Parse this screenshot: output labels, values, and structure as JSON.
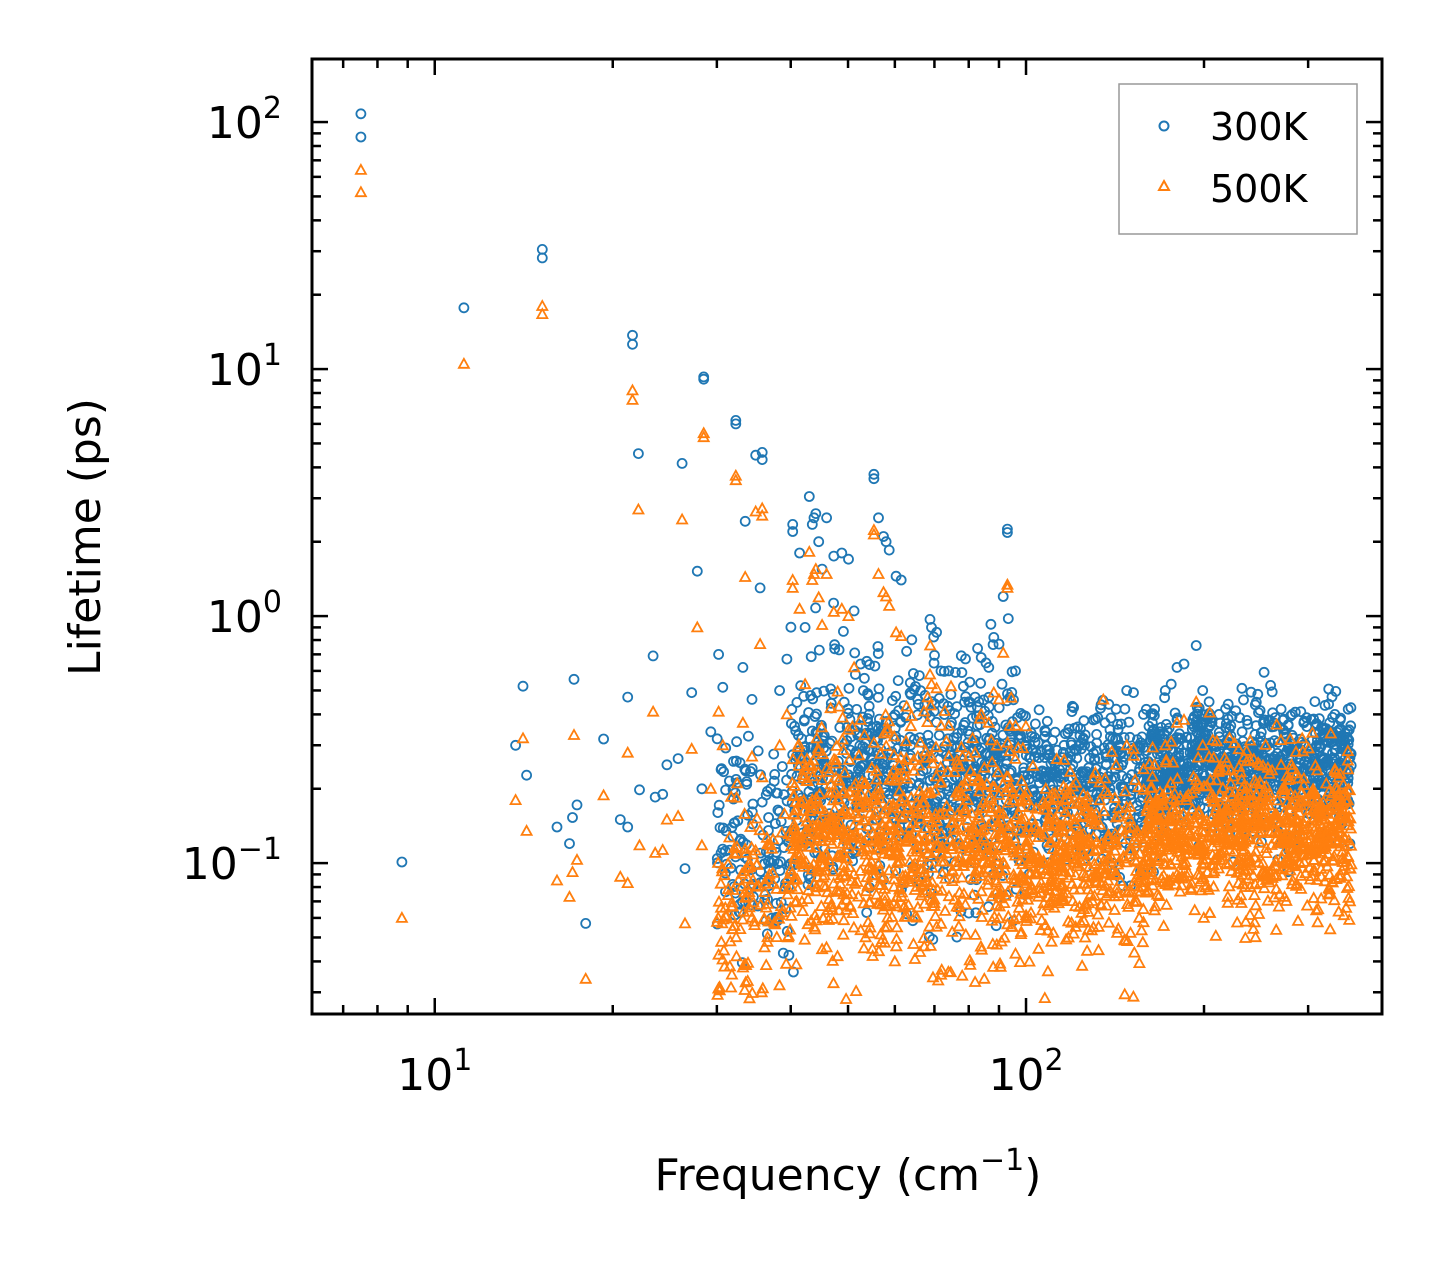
{
  "chart_data": {
    "type": "scatter",
    "title": "",
    "xlabel": "Frequency (cm",
    "xlabel_superscript": "−1",
    "xlabel_suffix": ")",
    "ylabel": "Lifetime (ps)",
    "xscale": "log",
    "yscale": "log",
    "xlim": [
      6.2,
      400
    ],
    "ylim": [
      0.0245,
      180
    ],
    "grid": false,
    "legend_location": "top-right",
    "x_ticks": [
      {
        "value": 10,
        "base": "10",
        "exponent": "1"
      },
      {
        "value": 100,
        "base": "10",
        "exponent": "2"
      }
    ],
    "y_ticks": [
      {
        "value": 0.1,
        "base": "10",
        "exponent": "−1"
      },
      {
        "value": 1,
        "base": "10",
        "exponent": "0"
      },
      {
        "value": 10,
        "base": "10",
        "exponent": "1"
      },
      {
        "value": 100,
        "base": "10",
        "exponent": "2"
      }
    ],
    "series": [
      {
        "name": "300K",
        "marker": "circle",
        "color": "#1f77b4",
        "points": [
          [
            7.5,
            108
          ],
          [
            7.5,
            87
          ],
          [
            8.8,
            0.101
          ],
          [
            11.2,
            17.7
          ],
          [
            13.7,
            0.3
          ],
          [
            14.1,
            0.52
          ],
          [
            14.3,
            0.227
          ],
          [
            15.2,
            30.5
          ],
          [
            15.2,
            28.2
          ],
          [
            16.1,
            0.14
          ],
          [
            16.9,
            0.12
          ],
          [
            17.1,
            0.153
          ],
          [
            17.2,
            0.555
          ],
          [
            17.4,
            0.172
          ],
          [
            18.0,
            0.057
          ],
          [
            19.3,
            0.318
          ],
          [
            20.6,
            0.15
          ],
          [
            21.2,
            0.47
          ],
          [
            21.6,
            13.7
          ],
          [
            21.6,
            12.6
          ],
          [
            21.2,
            0.14
          ],
          [
            22.1,
            4.55
          ],
          [
            22.2,
            0.198
          ],
          [
            23.4,
            0.69
          ],
          [
            23.6,
            0.185
          ],
          [
            24.3,
            0.19
          ],
          [
            24.7,
            0.25
          ],
          [
            25.8,
            0.265
          ],
          [
            26.2,
            4.15
          ],
          [
            26.5,
            0.095
          ],
          [
            27.2,
            0.49
          ],
          [
            27.8,
            1.52
          ],
          [
            28.3,
            0.2
          ],
          [
            28.5,
            9.3
          ],
          [
            28.5,
            9.1
          ],
          [
            29.3,
            0.34
          ],
          [
            30.2,
            0.7
          ],
          [
            30.5,
            0.11
          ],
          [
            30.7,
            0.515
          ],
          [
            31.0,
            0.112
          ],
          [
            31.5,
            0.215
          ],
          [
            32.3,
            6.2
          ],
          [
            32.3,
            6.0
          ],
          [
            32.4,
            0.31
          ],
          [
            33.2,
            0.62
          ],
          [
            33.5,
            2.42
          ],
          [
            34.2,
            0.235
          ],
          [
            34.4,
            0.46
          ],
          [
            34.9,
            4.48
          ],
          [
            35.5,
            1.3
          ],
          [
            35.8,
            4.6
          ],
          [
            35.8,
            4.3
          ],
          [
            37.0,
            0.2
          ],
          [
            38.3,
            0.5
          ],
          [
            39.4,
            0.67
          ],
          [
            40.3,
            2.35
          ],
          [
            40.3,
            2.2
          ],
          [
            41.4,
            1.8
          ],
          [
            42.3,
            0.9
          ],
          [
            43.0,
            3.05
          ],
          [
            43.5,
            2.35
          ],
          [
            43.8,
            2.5
          ],
          [
            44.1,
            2.6
          ],
          [
            44.6,
            2.0
          ],
          [
            45.2,
            1.55
          ],
          [
            46.0,
            2.5
          ],
          [
            47.3,
            1.75
          ],
          [
            48.3,
            0.73
          ],
          [
            48.8,
            1.8
          ],
          [
            50.1,
            1.7
          ],
          [
            51.2,
            1.05
          ],
          [
            52.5,
            0.64
          ],
          [
            53.3,
            0.56
          ],
          [
            55.3,
            3.75
          ],
          [
            55.3,
            3.6
          ],
          [
            56.3,
            2.5
          ],
          [
            57.4,
            2.1
          ],
          [
            58.0,
            2.0
          ],
          [
            58.7,
            1.85
          ],
          [
            60.3,
            1.45
          ],
          [
            61.5,
            1.4
          ],
          [
            62.8,
            0.72
          ],
          [
            65.6,
            0.46
          ],
          [
            68.8,
            0.97
          ],
          [
            69.2,
            0.9
          ],
          [
            70.6,
            0.86
          ],
          [
            71.8,
            0.6
          ],
          [
            74.0,
            0.6
          ],
          [
            76.4,
            0.43
          ],
          [
            80.0,
            0.45
          ],
          [
            82.0,
            0.47
          ],
          [
            84.0,
            0.68
          ],
          [
            86.5,
            0.62
          ],
          [
            88.2,
            0.82
          ],
          [
            90.0,
            0.77
          ],
          [
            91.5,
            1.2
          ],
          [
            93.0,
            2.25
          ],
          [
            93.0,
            2.18
          ],
          [
            96.0,
            0.6
          ],
          [
            100.0,
            0.3
          ],
          [
            104.0,
            0.28
          ],
          [
            108.0,
            0.34
          ],
          [
            112.0,
            0.25
          ],
          [
            116.0,
            0.3
          ],
          [
            120.0,
            0.25
          ],
          [
            125.0,
            0.32
          ],
          [
            130.0,
            0.38
          ],
          [
            136.0,
            0.37
          ],
          [
            142.0,
            0.42
          ],
          [
            148.0,
            0.5
          ],
          [
            152.0,
            0.49
          ],
          [
            158.0,
            0.4
          ],
          [
            165.0,
            0.42
          ],
          [
            172.0,
            0.5
          ],
          [
            176.0,
            0.53
          ],
          [
            180.0,
            0.62
          ],
          [
            185.0,
            0.64
          ],
          [
            194.0,
            0.76
          ],
          [
            199.0,
            0.5
          ],
          [
            204.0,
            0.45
          ],
          [
            212.0,
            0.4
          ],
          [
            222.0,
            0.36
          ],
          [
            232.0,
            0.34
          ],
          [
            245.0,
            0.36
          ],
          [
            258.0,
            0.38
          ],
          [
            270.0,
            0.42
          ],
          [
            282.0,
            0.4
          ],
          [
            295.0,
            0.37
          ],
          [
            310.0,
            0.3
          ],
          [
            322.0,
            0.35
          ],
          [
            333.0,
            0.4
          ],
          [
            340.0,
            0.38
          ],
          [
            350.0,
            0.18
          ],
          [
            353.0,
            0.12
          ]
        ]
      },
      {
        "name": "500K",
        "marker": "triangle",
        "color": "#ff7f0e",
        "points": [
          [
            7.5,
            64
          ],
          [
            7.5,
            52
          ],
          [
            8.8,
            0.06
          ],
          [
            11.2,
            10.5
          ],
          [
            13.7,
            0.18
          ],
          [
            14.1,
            0.32
          ],
          [
            14.3,
            0.135
          ],
          [
            15.2,
            18.0
          ],
          [
            15.2,
            16.7
          ],
          [
            16.1,
            0.085
          ],
          [
            16.9,
            0.073
          ],
          [
            17.1,
            0.092
          ],
          [
            17.2,
            0.33
          ],
          [
            17.4,
            0.103
          ],
          [
            18.0,
            0.034
          ],
          [
            19.3,
            0.188
          ],
          [
            20.6,
            0.088
          ],
          [
            21.2,
            0.28
          ],
          [
            21.6,
            8.2
          ],
          [
            21.6,
            7.5
          ],
          [
            21.2,
            0.083
          ],
          [
            22.1,
            2.7
          ],
          [
            22.2,
            0.118
          ],
          [
            23.4,
            0.41
          ],
          [
            23.6,
            0.11
          ],
          [
            24.3,
            0.113
          ],
          [
            24.7,
            0.15
          ],
          [
            25.8,
            0.155
          ],
          [
            26.2,
            2.46
          ],
          [
            26.5,
            0.057
          ],
          [
            27.2,
            0.29
          ],
          [
            27.8,
            0.9
          ],
          [
            28.3,
            0.118
          ],
          [
            28.5,
            5.5
          ],
          [
            28.5,
            5.3
          ],
          [
            29.3,
            0.2
          ],
          [
            30.2,
            0.41
          ],
          [
            30.5,
            0.066
          ],
          [
            30.7,
            0.3
          ],
          [
            31.0,
            0.066
          ],
          [
            31.5,
            0.127
          ],
          [
            32.3,
            3.7
          ],
          [
            32.3,
            3.55
          ],
          [
            32.4,
            0.184
          ],
          [
            33.2,
            0.37
          ],
          [
            33.5,
            1.44
          ],
          [
            34.2,
            0.14
          ],
          [
            34.4,
            0.27
          ],
          [
            34.9,
            2.65
          ],
          [
            35.5,
            0.77
          ],
          [
            35.8,
            2.73
          ],
          [
            35.8,
            2.55
          ],
          [
            37.0,
            0.118
          ],
          [
            38.3,
            0.3
          ],
          [
            39.4,
            0.4
          ],
          [
            40.3,
            1.4
          ],
          [
            40.3,
            1.3
          ],
          [
            41.4,
            1.07
          ],
          [
            42.3,
            0.53
          ],
          [
            43.0,
            1.82
          ],
          [
            43.5,
            1.4
          ],
          [
            43.8,
            1.48
          ],
          [
            44.1,
            1.55
          ],
          [
            44.6,
            1.19
          ],
          [
            45.2,
            0.92
          ],
          [
            46.0,
            1.48
          ],
          [
            47.3,
            1.04
          ],
          [
            48.3,
            0.43
          ],
          [
            48.8,
            1.07
          ],
          [
            50.1,
            1.0
          ],
          [
            51.2,
            0.62
          ],
          [
            52.5,
            0.38
          ],
          [
            53.3,
            0.33
          ],
          [
            55.3,
            2.23
          ],
          [
            55.3,
            2.14
          ],
          [
            56.3,
            1.48
          ],
          [
            57.4,
            1.25
          ],
          [
            58.0,
            1.2
          ],
          [
            58.7,
            1.1
          ],
          [
            60.3,
            0.86
          ],
          [
            61.5,
            0.83
          ],
          [
            62.8,
            0.43
          ],
          [
            65.6,
            0.27
          ],
          [
            68.8,
            0.58
          ],
          [
            69.2,
            0.53
          ],
          [
            70.6,
            0.51
          ],
          [
            71.8,
            0.36
          ],
          [
            74.0,
            0.36
          ],
          [
            76.4,
            0.26
          ],
          [
            80.0,
            0.27
          ],
          [
            82.0,
            0.28
          ],
          [
            84.0,
            0.4
          ],
          [
            86.5,
            0.37
          ],
          [
            88.2,
            0.49
          ],
          [
            90.0,
            0.46
          ],
          [
            91.5,
            0.71
          ],
          [
            93.0,
            1.34
          ],
          [
            93.0,
            1.3
          ],
          [
            96.0,
            0.36
          ],
          [
            100.0,
            0.18
          ],
          [
            104.0,
            0.166
          ],
          [
            108.0,
            0.2
          ],
          [
            112.0,
            0.15
          ],
          [
            116.0,
            0.18
          ],
          [
            120.0,
            0.15
          ],
          [
            125.0,
            0.19
          ],
          [
            130.0,
            0.22
          ],
          [
            136.0,
            0.22
          ],
          [
            142.0,
            0.25
          ],
          [
            148.0,
            0.3
          ],
          [
            152.0,
            0.29
          ],
          [
            158.0,
            0.24
          ],
          [
            165.0,
            0.25
          ],
          [
            172.0,
            0.3
          ],
          [
            176.0,
            0.31
          ],
          [
            180.0,
            0.37
          ],
          [
            185.0,
            0.38
          ],
          [
            194.0,
            0.45
          ],
          [
            199.0,
            0.3
          ],
          [
            204.0,
            0.27
          ],
          [
            212.0,
            0.24
          ],
          [
            222.0,
            0.21
          ],
          [
            232.0,
            0.2
          ],
          [
            245.0,
            0.21
          ],
          [
            258.0,
            0.23
          ],
          [
            270.0,
            0.25
          ],
          [
            282.0,
            0.24
          ],
          [
            295.0,
            0.22
          ],
          [
            310.0,
            0.18
          ],
          [
            322.0,
            0.21
          ],
          [
            333.0,
            0.24
          ],
          [
            340.0,
            0.23
          ],
          [
            350.0,
            0.107
          ],
          [
            353.0,
            0.07
          ],
          [
            48.0,
            0.042
          ],
          [
            55.0,
            0.045
          ],
          [
            60.0,
            0.04
          ],
          [
            72.0,
            0.037
          ],
          [
            78.0,
            0.035
          ],
          [
            82.0,
            0.033
          ],
          [
            85.0,
            0.034
          ],
          [
            88.0,
            0.038
          ],
          [
            96.0,
            0.043
          ],
          [
            105.0,
            0.045
          ],
          [
            118.0,
            0.05
          ],
          [
            130.0,
            0.055
          ]
        ],
        "cloud": [
          {
            "x_min": 30,
            "x_max": 40,
            "y_center": 0.07,
            "spread": 0.4,
            "count": 140
          },
          {
            "x_min": 40,
            "x_max": 100,
            "y_center": 0.12,
            "spread": 0.45,
            "count": 900
          },
          {
            "x_min": 100,
            "x_max": 160,
            "y_center": 0.1,
            "spread": 0.35,
            "count": 420
          },
          {
            "x_min": 160,
            "x_max": 355,
            "y_center": 0.13,
            "spread": 0.3,
            "count": 900
          }
        ]
      }
    ],
    "cloud_300K": [
      {
        "x_min": 30,
        "x_max": 40,
        "y_center": 0.12,
        "spread": 0.4,
        "count": 140
      },
      {
        "x_min": 40,
        "x_max": 100,
        "y_center": 0.22,
        "spread": 0.45,
        "count": 800
      },
      {
        "x_min": 100,
        "x_max": 160,
        "y_center": 0.2,
        "spread": 0.3,
        "count": 380
      },
      {
        "x_min": 160,
        "x_max": 355,
        "y_center": 0.24,
        "spread": 0.25,
        "count": 900
      }
    ]
  }
}
